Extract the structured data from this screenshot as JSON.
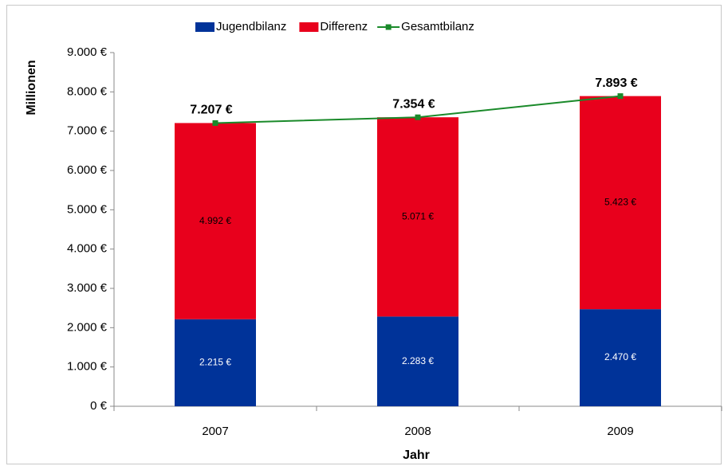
{
  "chart_data": {
    "type": "bar",
    "stacked": true,
    "categories": [
      "2007",
      "2008",
      "2009"
    ],
    "series": [
      {
        "name": "Jugendbilanz",
        "color": "#003399",
        "values": [
          2215,
          2283,
          2470
        ],
        "value_labels": [
          "2.215 €",
          "2.283 €",
          "2.470 €"
        ],
        "label_color": "#ffffff"
      },
      {
        "name": "Differenz",
        "color": "#e8001c",
        "values": [
          4992,
          5071,
          5423
        ],
        "value_labels": [
          "4.992 €",
          "5.071 €",
          "5.423 €"
        ],
        "label_color": "#000000"
      },
      {
        "name": "Gesamtbilanz",
        "type": "line",
        "color": "#1a8a2a",
        "values": [
          7207,
          7354,
          7893
        ],
        "value_labels": [
          "7.207 €",
          "7.354 €",
          "7.893 €"
        ],
        "label_color": "#000000"
      }
    ],
    "xlabel": "Jahr",
    "ylabel": "Millionen",
    "ylim": [
      0,
      9000
    ],
    "yticks": [
      {
        "value": 0,
        "label": "0 €"
      },
      {
        "value": 1000,
        "label": "1.000 €"
      },
      {
        "value": 2000,
        "label": "2.000 €"
      },
      {
        "value": 3000,
        "label": "3.000 €"
      },
      {
        "value": 4000,
        "label": "4.000 €"
      },
      {
        "value": 5000,
        "label": "5.000 €"
      },
      {
        "value": 6000,
        "label": "6.000 €"
      },
      {
        "value": 7000,
        "label": "7.000 €"
      },
      {
        "value": 8000,
        "label": "8.000 €"
      },
      {
        "value": 9000,
        "label": "9.000 €"
      }
    ],
    "grid": false,
    "legend": "top"
  }
}
